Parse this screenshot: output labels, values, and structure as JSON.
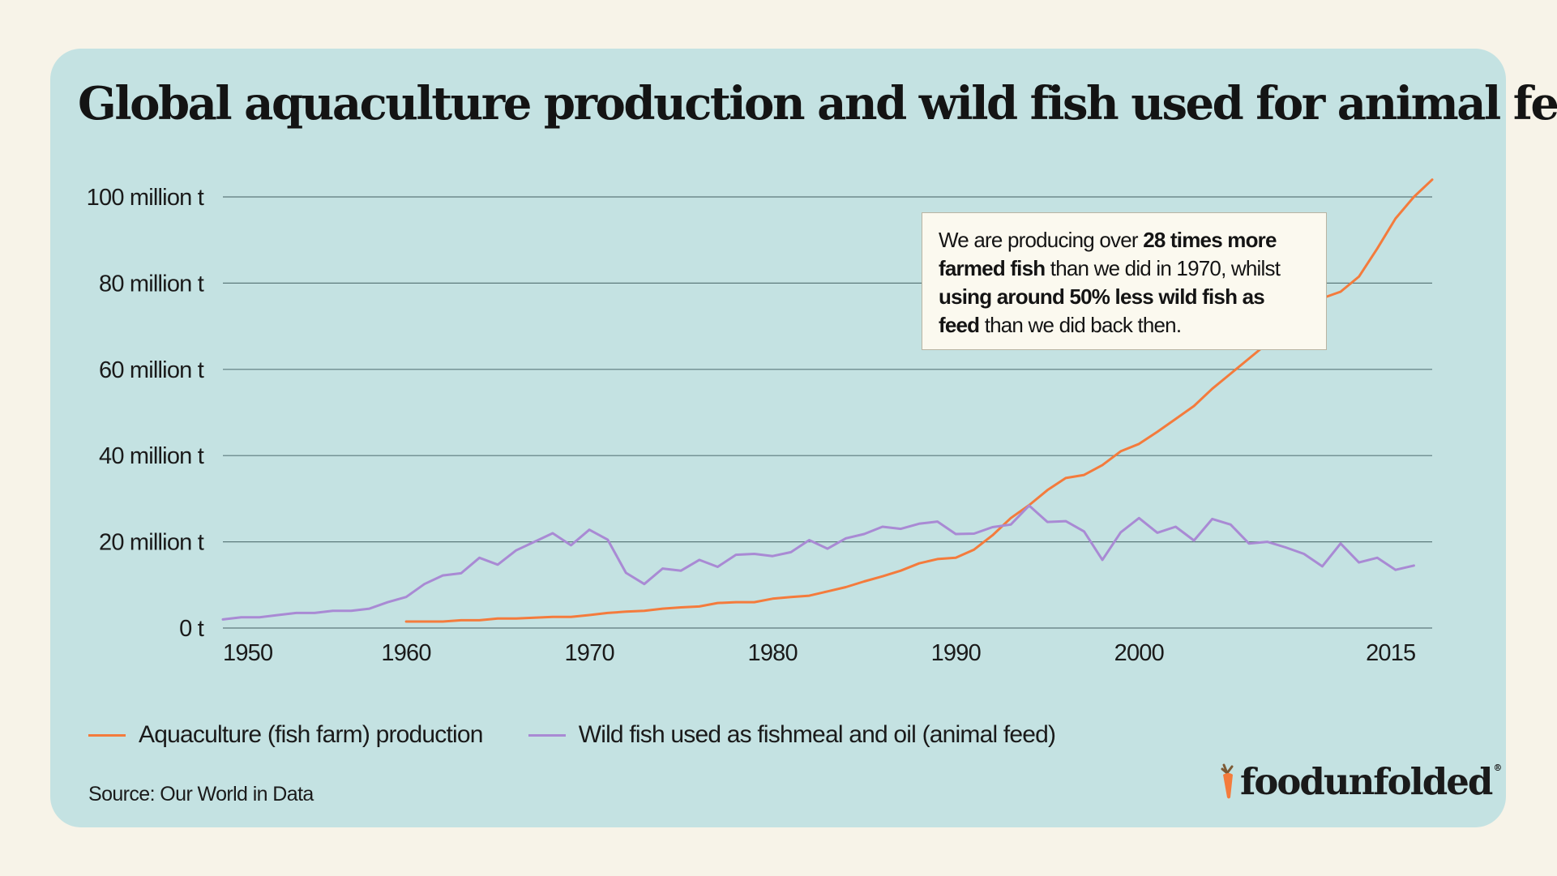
{
  "title": "Global aquaculture production and wild fish used for animal feed",
  "annotation": {
    "parts": [
      {
        "text": "We are producing over ",
        "bold": false
      },
      {
        "text": "28 times more farmed fish",
        "bold": true
      },
      {
        "text": " than we did in 1970, whilst ",
        "bold": false
      },
      {
        "text": "using around 50% less wild fish as feed",
        "bold": true
      },
      {
        "text": " than we did back then.",
        "bold": false
      }
    ]
  },
  "source": "Source: Our World in Data",
  "logo": {
    "text": "foodunfolded",
    "mark": "®",
    "icon": "carrot-icon"
  },
  "colors": {
    "background": "#f7f3e8",
    "card": "#c4e2e2",
    "aquaculture": "#f47b3c",
    "wild_fish": "#a98ad4",
    "grid": "#5d7a7c",
    "carrot": "#f47b3c",
    "leaf": "#7d5a35"
  },
  "chart_data": {
    "type": "line",
    "title": "Global aquaculture production and wild fish used for animal feed",
    "xlabel": "",
    "ylabel": "",
    "xlim": [
      1950,
      2016
    ],
    "ylim": [
      0,
      100
    ],
    "x_ticks": [
      {
        "value": 1950,
        "label": "1950"
      },
      {
        "value": 1960,
        "label": "1960"
      },
      {
        "value": 1970,
        "label": "1970"
      },
      {
        "value": 1980,
        "label": "1980"
      },
      {
        "value": 1990,
        "label": "1990"
      },
      {
        "value": 2000,
        "label": "2000"
      },
      {
        "value": 2015,
        "label": "2015"
      }
    ],
    "y_ticks": [
      {
        "value": 0,
        "label": "0 t"
      },
      {
        "value": 20,
        "label": "20 million t"
      },
      {
        "value": 40,
        "label": "40 million t"
      },
      {
        "value": 60,
        "label": "60 million t"
      },
      {
        "value": 80,
        "label": "80 million t"
      },
      {
        "value": 100,
        "label": "100 million t"
      }
    ],
    "grid": true,
    "legend_position": "bottom-left",
    "series": [
      {
        "name": "Aquaculture (fish farm) production",
        "color": "#f47b3c",
        "x": [
          1960,
          1961,
          1962,
          1963,
          1964,
          1965,
          1966,
          1967,
          1968,
          1969,
          1970,
          1971,
          1972,
          1973,
          1974,
          1975,
          1976,
          1977,
          1978,
          1979,
          1980,
          1981,
          1982,
          1983,
          1984,
          1985,
          1986,
          1987,
          1988,
          1989,
          1990,
          1991,
          1992,
          1993,
          1994,
          1995,
          1996,
          1997,
          1998,
          1999,
          2000,
          2001,
          2002,
          2003,
          2004,
          2005,
          2006,
          2007,
          2008,
          2009,
          2010,
          2011,
          2012,
          2013,
          2014,
          2015,
          2016
        ],
        "values": [
          1.5,
          1.5,
          1.5,
          1.8,
          1.8,
          2.2,
          2.2,
          2.4,
          2.6,
          2.6,
          3.0,
          3.5,
          3.8,
          4.0,
          4.5,
          4.8,
          5.0,
          5.8,
          6.0,
          6.0,
          6.8,
          7.2,
          7.5,
          8.5,
          9.5,
          10.8,
          12.0,
          13.3,
          15.0,
          16.0,
          16.3,
          18.2,
          21.5,
          25.5,
          28.5,
          32.0,
          34.8,
          35.5,
          37.8,
          41.0,
          42.7,
          45.5,
          48.5,
          51.5,
          55.5,
          59.0,
          62.5,
          66.0,
          69.5,
          73.0,
          76.5,
          78.0,
          81.5,
          88.0,
          95.0,
          100.0,
          104.0
        ]
      },
      {
        "name": "Wild fish used as fishmeal and oil (animal feed)",
        "color": "#a98ad4",
        "x": [
          1950,
          1951,
          1952,
          1953,
          1954,
          1955,
          1956,
          1957,
          1958,
          1959,
          1960,
          1961,
          1962,
          1963,
          1964,
          1965,
          1966,
          1967,
          1968,
          1969,
          1970,
          1971,
          1972,
          1973,
          1974,
          1975,
          1976,
          1977,
          1978,
          1979,
          1980,
          1981,
          1982,
          1983,
          1984,
          1985,
          1986,
          1987,
          1988,
          1989,
          1990,
          1991,
          1992,
          1993,
          1994,
          1995,
          1996,
          1997,
          1998,
          1999,
          2000,
          2001,
          2002,
          2003,
          2004,
          2005,
          2006,
          2007,
          2008,
          2009,
          2010,
          2011,
          2012,
          2013,
          2014,
          2015,
          2016
        ],
        "values": [
          2.0,
          2.5,
          2.5,
          3.0,
          3.5,
          3.5,
          4.0,
          4.0,
          4.5,
          6.0,
          7.2,
          10.2,
          12.2,
          12.7,
          16.3,
          14.7,
          18.0,
          20.0,
          22.0,
          19.2,
          22.8,
          20.5,
          12.8,
          10.2,
          13.8,
          13.3,
          15.8,
          14.2,
          17.0,
          17.2,
          16.7,
          17.6,
          20.4,
          18.4,
          20.8,
          21.8,
          23.5,
          23.0,
          24.2,
          24.7,
          21.8,
          21.9,
          23.4,
          24.0,
          28.4,
          24.6,
          24.8,
          22.4,
          15.8,
          22.2,
          25.5,
          22.1,
          23.5,
          20.3,
          25.3,
          24.0,
          19.6,
          20.0,
          18.7,
          17.2,
          14.3,
          19.6,
          15.2,
          16.3,
          13.5,
          14.5,
          null
        ]
      }
    ]
  }
}
